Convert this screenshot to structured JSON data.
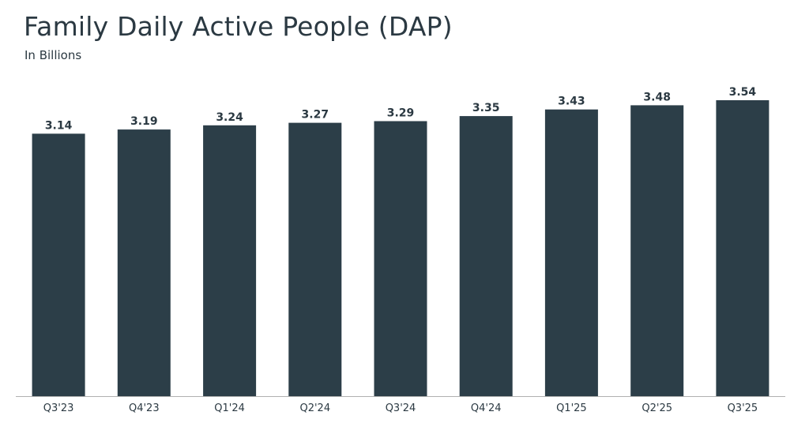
{
  "chart_data": {
    "type": "bar",
    "title": "Family Daily Active People (DAP)",
    "subtitle": "In Billions",
    "categories": [
      "Q3'23",
      "Q4'23",
      "Q1'24",
      "Q2'24",
      "Q3'24",
      "Q4'24",
      "Q1'25",
      "Q2'25",
      "Q3'25"
    ],
    "values": [
      3.14,
      3.19,
      3.24,
      3.27,
      3.29,
      3.35,
      3.43,
      3.48,
      3.54
    ],
    "data_labels": [
      "3.14",
      "3.19",
      "3.24",
      "3.27",
      "3.29",
      "3.35",
      "3.43",
      "3.48",
      "3.54"
    ],
    "xlabel": "",
    "ylabel": "",
    "ylim": [
      0,
      3.54
    ],
    "grid": false,
    "legend": "none",
    "bar_color": "#2c3e48"
  }
}
